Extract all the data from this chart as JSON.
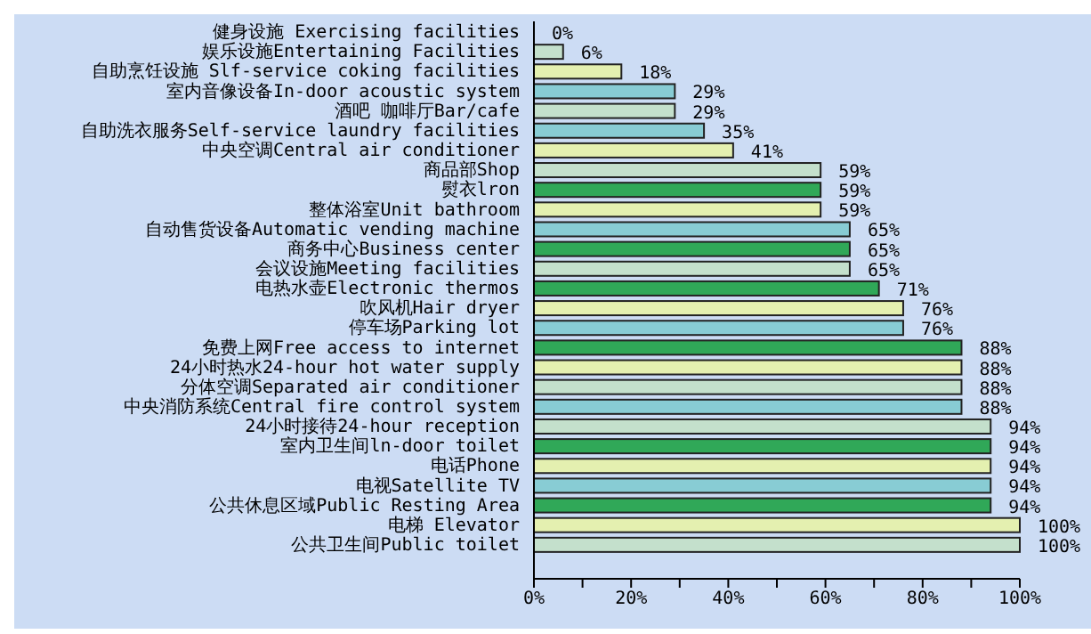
{
  "chart_data": {
    "type": "bar",
    "orientation": "horizontal",
    "categories": [
      "健身设施 Exercising facilities",
      "娱乐设施Entertaining Facilities",
      "自助烹饪设施 Slf-service coking facilities",
      "室内音像设备In-door acoustic system",
      "酒吧 咖啡厅Bar/cafe",
      "自助洗衣服务Self-service laundry facilities",
      "中央空调Central air conditioner",
      "商品部Shop",
      "熨衣lron",
      "整体浴室Unit bathroom",
      "自动售货设备Automatic vending machine",
      "商务中心Business center",
      "会议设施Meeting facilities",
      "电热水壶Electronic thermos",
      "吹风机Hair dryer",
      "停车场Parking lot",
      "免费上网Free access to internet",
      "24小时热水24-hour hot water supply",
      "分体空调Separated air conditioner",
      "中央消防系统Central fire control system",
      "24小时接待24-hour reception",
      "室内卫生间ln-door toilet",
      "电话Phone",
      "电视Satellite TV",
      "公共休息区域Public Resting Area",
      "电梯 Elevator",
      "公共卫生间Public toilet"
    ],
    "values": [
      0,
      6,
      18,
      29,
      29,
      35,
      41,
      59,
      59,
      59,
      65,
      65,
      65,
      71,
      76,
      76,
      88,
      88,
      88,
      88,
      94,
      94,
      94,
      94,
      94,
      100,
      100
    ],
    "colors": [
      "#c4e0cc",
      "#c4e0cc",
      "#e4f0b0",
      "#88ccd4",
      "#c4e0cc",
      "#88ccd4",
      "#e4f0b0",
      "#c4e0cc",
      "#30a858",
      "#e4f0b0",
      "#88ccd4",
      "#30a858",
      "#c4e0cc",
      "#30a858",
      "#e4f0b0",
      "#88ccd4",
      "#30a858",
      "#e4f0b0",
      "#c4e0cc",
      "#88ccd4",
      "#c4e0cc",
      "#30a858",
      "#e4f0b0",
      "#88ccd4",
      "#30a858",
      "#e4f0b0",
      "#c4e0cc"
    ],
    "value_labels": [
      "0%",
      "6%",
      "18%",
      "29%",
      "29%",
      "35%",
      "41%",
      "59%",
      "59%",
      "59%",
      "65%",
      "65%",
      "65%",
      "71%",
      "76%",
      "76%",
      "88%",
      "88%",
      "88%",
      "88%",
      "94%",
      "94%",
      "94%",
      "94%",
      "94%",
      "100%",
      "100%"
    ],
    "xlim": [
      0,
      100
    ],
    "xticks": [
      {
        "value": 0,
        "label": "0%"
      },
      {
        "value": 10,
        "label": null
      },
      {
        "value": 20,
        "label": "20%"
      },
      {
        "value": 30,
        "label": null
      },
      {
        "value": 40,
        "label": "40%"
      },
      {
        "value": 50,
        "label": null
      },
      {
        "value": 60,
        "label": "60%"
      },
      {
        "value": 70,
        "label": null
      },
      {
        "value": 80,
        "label": "80%"
      },
      {
        "value": 90,
        "label": null
      },
      {
        "value": 100,
        "label": "100%"
      }
    ],
    "grid": false,
    "legend": false
  }
}
